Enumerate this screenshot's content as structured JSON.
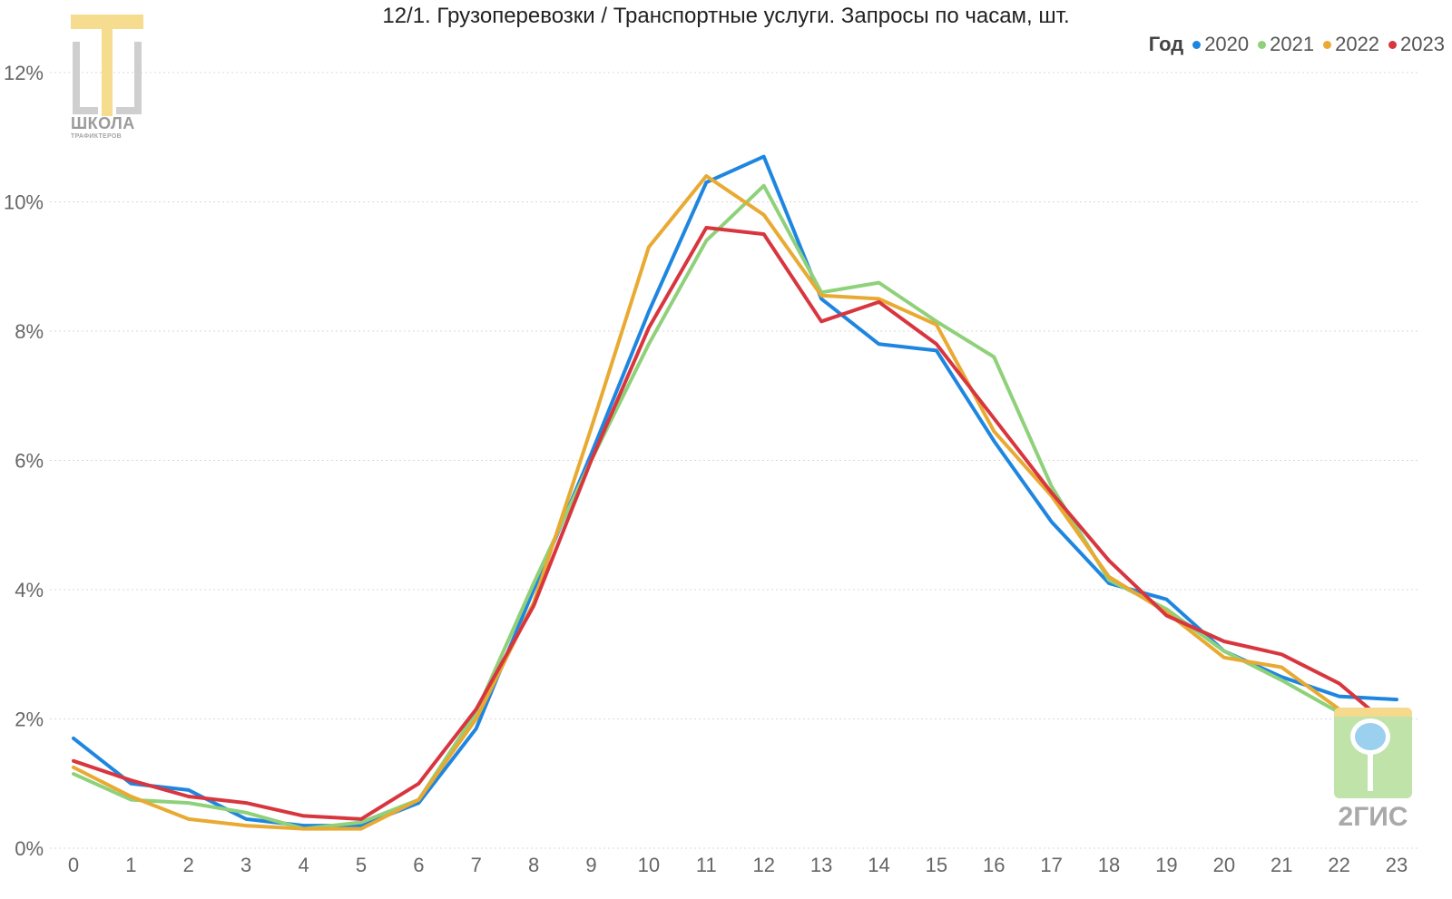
{
  "chart_data": {
    "type": "line",
    "title": "12/1. Грузоперевозки / Транспортные услуги. Запросы по часам, шт.",
    "legend_title": "Год",
    "legend_position": "top-right",
    "x": [
      "0",
      "1",
      "2",
      "3",
      "4",
      "5",
      "6",
      "7",
      "8",
      "9",
      "10",
      "11",
      "12",
      "13",
      "14",
      "15",
      "16",
      "17",
      "18",
      "19",
      "20",
      "21",
      "22",
      "23"
    ],
    "y_ticks": [
      "0%",
      "2%",
      "4%",
      "6%",
      "8%",
      "10%",
      "12%"
    ],
    "ylim": [
      0,
      12
    ],
    "grid": true,
    "series": [
      {
        "name": "2020",
        "color": "#1f86e0",
        "values": [
          1.7,
          1.0,
          0.9,
          0.45,
          0.35,
          0.35,
          0.7,
          1.85,
          4.0,
          6.1,
          8.3,
          10.3,
          10.7,
          8.5,
          7.8,
          7.7,
          6.3,
          5.05,
          4.1,
          3.85,
          3.05,
          2.65,
          2.35,
          2.3
        ]
      },
      {
        "name": "2021",
        "color": "#8fd17a",
        "values": [
          1.15,
          0.75,
          0.7,
          0.55,
          0.3,
          0.4,
          0.75,
          2.1,
          4.1,
          6.0,
          7.8,
          9.4,
          10.25,
          8.6,
          8.75,
          8.15,
          7.6,
          5.6,
          4.15,
          3.7,
          3.05,
          2.6,
          2.1,
          1.55
        ]
      },
      {
        "name": "2022",
        "color": "#e8aa32",
        "values": [
          1.25,
          0.8,
          0.45,
          0.35,
          0.3,
          0.3,
          0.75,
          2.0,
          3.8,
          6.5,
          9.3,
          10.4,
          9.8,
          8.55,
          8.5,
          8.1,
          6.45,
          5.45,
          4.2,
          3.65,
          2.95,
          2.8,
          2.15,
          1.75
        ]
      },
      {
        "name": "2023",
        "color": "#d8363f",
        "values": [
          1.35,
          1.05,
          0.8,
          0.7,
          0.5,
          0.45,
          1.0,
          2.15,
          3.75,
          6.0,
          8.05,
          9.6,
          9.5,
          8.15,
          8.45,
          7.8,
          6.65,
          5.5,
          4.45,
          3.6,
          3.2,
          3.0,
          2.55,
          1.8
        ]
      }
    ]
  },
  "logos": {
    "school_logo": {
      "line1": "ШКОЛА",
      "line2": "ТРАФИКТЕРОВ"
    },
    "gis_logo": {
      "word": "2ГИС"
    }
  }
}
